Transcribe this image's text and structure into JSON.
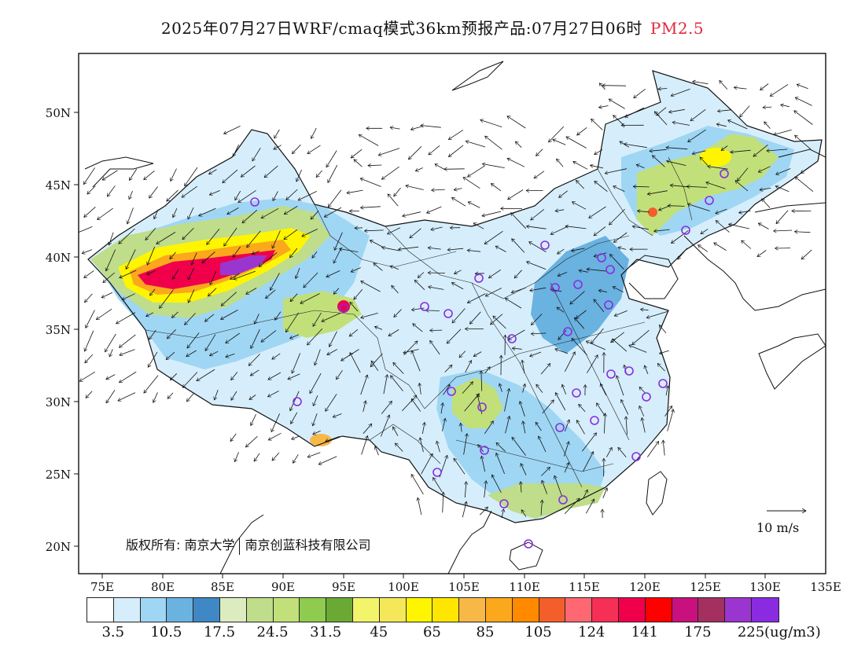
{
  "title": {
    "main": "2025年07月27日WRF/cmaq模式36km预报产品:07月27日06时",
    "pollutant": "PM2.5"
  },
  "map": {
    "lat_labels": [
      "50N",
      "45N",
      "40N",
      "35N",
      "30N",
      "25N",
      "20N"
    ],
    "lat_values": [
      50,
      45,
      40,
      35,
      30,
      25,
      20
    ],
    "lon_labels": [
      "75E",
      "80E",
      "85E",
      "90E",
      "95E",
      "100E",
      "105E",
      "110E",
      "115E",
      "120E",
      "125E",
      "130E",
      "135E"
    ],
    "lon_values": [
      75,
      80,
      85,
      90,
      95,
      100,
      105,
      110,
      115,
      120,
      125,
      130,
      135
    ],
    "extent": {
      "lon_min": 73,
      "lon_max": 135,
      "lat_min": 18,
      "lat_max": 54
    },
    "copyright": {
      "part1": "版权所有: 南京大学",
      "part2": "南京创蓝科技有限公司"
    },
    "wind_reference": "10 m/s"
  },
  "colorbar": {
    "colors": [
      "#ffffff",
      "#d6eefb",
      "#9fd6f4",
      "#6ab2e0",
      "#3f88c5",
      "#dcecc0",
      "#bfdd8a",
      "#c2e07a",
      "#8ecb4e",
      "#6aaa34",
      "#f2f56a",
      "#f4e85a",
      "#fff500",
      "#ffe600",
      "#f8b848",
      "#fba81d",
      "#ff8a00",
      "#f45e2a",
      "#ff6872",
      "#f52f55",
      "#f0004b",
      "#ff0000",
      "#c8117f",
      "#a3305f",
      "#9b35d0",
      "#8a2be2"
    ],
    "tick_labels": [
      "3.5",
      "10.5",
      "17.5",
      "24.5",
      "31.5",
      "45",
      "65",
      "85",
      "105",
      "124",
      "141",
      "175",
      "225"
    ],
    "unit": "(ug/m3)"
  }
}
